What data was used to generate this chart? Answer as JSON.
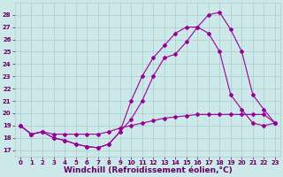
{
  "background_color": "#cce8e8",
  "grid_color": "#aacccc",
  "line_color": "#990099",
  "xlabel": "Windchill (Refroidissement éolien,°C)",
  "xlabel_color": "#660066",
  "tick_color": "#660066",
  "xlim": [
    -0.5,
    23.5
  ],
  "ylim": [
    16.5,
    29.0
  ],
  "yticks": [
    17,
    18,
    19,
    20,
    21,
    22,
    23,
    24,
    25,
    26,
    27,
    28
  ],
  "xticks": [
    0,
    1,
    2,
    3,
    4,
    5,
    6,
    7,
    8,
    9,
    10,
    11,
    12,
    13,
    14,
    15,
    16,
    17,
    18,
    19,
    20,
    21,
    22,
    23
  ],
  "series1_x": [
    0,
    1,
    2,
    3,
    4,
    5,
    6,
    7,
    8,
    9,
    10,
    11,
    12,
    13,
    14,
    15,
    16,
    17,
    18,
    19,
    20,
    21,
    22,
    23
  ],
  "series1_y": [
    19,
    18.3,
    18.5,
    18.0,
    17.8,
    17.5,
    17.3,
    17.2,
    17.5,
    18.5,
    19.5,
    21.0,
    23.0,
    24.5,
    24.8,
    25.8,
    27.0,
    28.0,
    28.2,
    26.8,
    25.0,
    21.5,
    20.3,
    19.2
  ],
  "series2_x": [
    0,
    1,
    2,
    3,
    4,
    5,
    6,
    7,
    8,
    9,
    10,
    11,
    12,
    13,
    14,
    15,
    16,
    17,
    18,
    19,
    20,
    21,
    22,
    23
  ],
  "series2_y": [
    19,
    18.3,
    18.5,
    18.0,
    17.8,
    17.5,
    17.3,
    17.2,
    17.5,
    18.5,
    21.0,
    23.0,
    24.5,
    25.5,
    26.5,
    27.0,
    27.0,
    26.5,
    25.0,
    21.5,
    20.3,
    19.2,
    19.0,
    19.2
  ],
  "series3_x": [
    0,
    1,
    2,
    3,
    4,
    5,
    6,
    7,
    8,
    9,
    10,
    11,
    12,
    13,
    14,
    15,
    16,
    17,
    18,
    19,
    20,
    21,
    22,
    23
  ],
  "series3_y": [
    19,
    18.3,
    18.5,
    18.3,
    18.3,
    18.3,
    18.3,
    18.3,
    18.5,
    18.8,
    19.0,
    19.2,
    19.4,
    19.6,
    19.7,
    19.8,
    19.9,
    19.9,
    19.9,
    19.9,
    19.9,
    19.9,
    19.9,
    19.2
  ],
  "marker": "D",
  "markersize": 2.0,
  "linewidth": 0.8,
  "xlabel_fontsize": 6.5,
  "tick_fontsize": 5.0
}
